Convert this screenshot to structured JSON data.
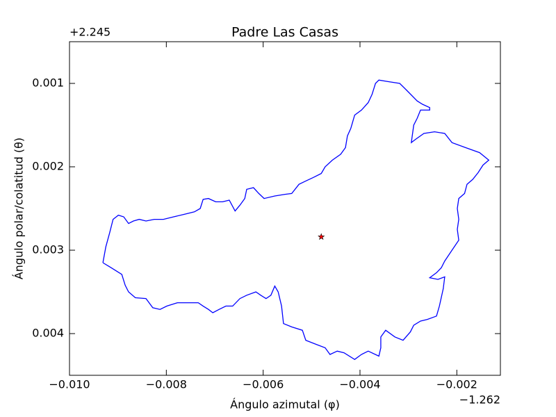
{
  "chart_data": {
    "type": "line",
    "title": "Padre Las Casas",
    "xlabel": "Ángulo azimutal (φ)",
    "ylabel": "Ángulo polar/colatitud (θ)",
    "x_offset": "−1.262",
    "y_offset": "+2.245",
    "xlim": [
      -0.01,
      -0.0011
    ],
    "ylim": [
      0.0005,
      0.0045
    ],
    "y_inverted": true,
    "xticks": [
      {
        "value": -0.01,
        "label": "−0.010"
      },
      {
        "value": -0.008,
        "label": "−0.008"
      },
      {
        "value": -0.006,
        "label": "−0.006"
      },
      {
        "value": -0.004,
        "label": "−0.004"
      },
      {
        "value": -0.002,
        "label": "−0.002"
      }
    ],
    "yticks": [
      0.001,
      0.002,
      0.003,
      0.004
    ],
    "x": [
      -0.00931,
      -0.00925,
      -0.00917,
      -0.0091,
      -0.00899,
      -0.00888,
      -0.00878,
      -0.00868,
      -0.00856,
      -0.00842,
      -0.00825,
      -0.00806,
      -0.00785,
      -0.00763,
      -0.00742,
      -0.0073,
      -0.00724,
      -0.00713,
      -0.00698,
      -0.00684,
      -0.0067,
      -0.00658,
      -0.00648,
      -0.00638,
      -0.00634,
      -0.0062,
      -0.00609,
      -0.00598,
      -0.00576,
      -0.00555,
      -0.00541,
      -0.00526,
      -0.00512,
      -0.00497,
      -0.0048,
      -0.00472,
      -0.00457,
      -0.0044,
      -0.0043,
      -0.00426,
      -0.00419,
      -0.00411,
      -0.00397,
      -0.00383,
      -0.00375,
      -0.00368,
      -0.00361,
      -0.0034,
      -0.00318,
      -0.00304,
      -0.00282,
      -0.00271,
      -0.00256,
      -0.00256,
      -0.00275,
      -0.00282,
      -0.00289,
      -0.00294,
      -0.00285,
      -0.00268,
      -0.00246,
      -0.00225,
      -0.0021,
      -0.00182,
      -0.00153,
      -0.00134,
      -0.00146,
      -0.00156,
      -0.00167,
      -0.00179,
      -0.00184,
      -0.00196,
      -0.00199,
      -0.00196,
      -0.00199,
      -0.00196,
      -0.0021,
      -0.00225,
      -0.00232,
      -0.00242,
      -0.00256,
      -0.00239,
      -0.00225,
      -0.00228,
      -0.00236,
      -0.00242,
      -0.00261,
      -0.00275,
      -0.00289,
      -0.00296,
      -0.00311,
      -0.00328,
      -0.00347,
      -0.00357,
      -0.00357,
      -0.00361,
      -0.00383,
      -0.00397,
      -0.00411,
      -0.00433,
      -0.00447,
      -0.00462,
      -0.00472,
      -0.0049,
      -0.00512,
      -0.00519,
      -0.00541,
      -0.00558,
      -0.00562,
      -0.00569,
      -0.00576,
      -0.00584,
      -0.00594,
      -0.00605,
      -0.00615,
      -0.00634,
      -0.00648,
      -0.00663,
      -0.00677,
      -0.00691,
      -0.00704,
      -0.00713,
      -0.00724,
      -0.00734,
      -0.00756,
      -0.00777,
      -0.00799,
      -0.00813,
      -0.00828,
      -0.00842,
      -0.00864,
      -0.00878,
      -0.00885,
      -0.00892,
      -0.00914,
      -0.00931
    ],
    "series": [
      {
        "color": "#0000ff",
        "values": [
          0.00315,
          0.00296,
          0.00279,
          0.00263,
          0.00258,
          0.0026,
          0.00268,
          0.00265,
          0.00263,
          0.00265,
          0.00263,
          0.00263,
          0.0026,
          0.00257,
          0.00254,
          0.0025,
          0.00239,
          0.00238,
          0.00242,
          0.00242,
          0.0024,
          0.00253,
          0.00246,
          0.00238,
          0.00227,
          0.00225,
          0.00232,
          0.00238,
          0.00235,
          0.00233,
          0.00232,
          0.00221,
          0.00217,
          0.00213,
          0.00208,
          0.002,
          0.00192,
          0.00185,
          0.00177,
          0.00163,
          0.00154,
          0.00138,
          0.00132,
          0.00123,
          0.00113,
          0.001,
          0.00096,
          0.00098,
          0.001,
          0.00108,
          0.00121,
          0.00125,
          0.00129,
          0.00132,
          0.00132,
          0.00142,
          0.0015,
          0.00171,
          0.00167,
          0.0016,
          0.00158,
          0.0016,
          0.00171,
          0.00177,
          0.00183,
          0.00192,
          0.00198,
          0.00207,
          0.00215,
          0.00221,
          0.00232,
          0.00238,
          0.0025,
          0.00263,
          0.00275,
          0.00288,
          0.003,
          0.00313,
          0.00321,
          0.00327,
          0.00333,
          0.00335,
          0.00332,
          0.00346,
          0.00367,
          0.00379,
          0.00383,
          0.00385,
          0.0039,
          0.00398,
          0.00408,
          0.00404,
          0.00396,
          0.00404,
          0.00417,
          0.00427,
          0.00421,
          0.00425,
          0.00431,
          0.00423,
          0.00421,
          0.00425,
          0.00417,
          0.00413,
          0.00408,
          0.00396,
          0.00392,
          0.00388,
          0.00367,
          0.0035,
          0.00343,
          0.00354,
          0.00358,
          0.00354,
          0.0035,
          0.00354,
          0.00358,
          0.00367,
          0.00367,
          0.00371,
          0.00375,
          0.00371,
          0.00367,
          0.00363,
          0.00363,
          0.00363,
          0.00367,
          0.00371,
          0.00369,
          0.00358,
          0.00357,
          0.0035,
          0.00342,
          0.00329,
          0.00321,
          0.00315
        ]
      }
    ],
    "markers": [
      {
        "x": -0.0048,
        "y": 0.00284,
        "color": "#ff0000"
      }
    ]
  }
}
